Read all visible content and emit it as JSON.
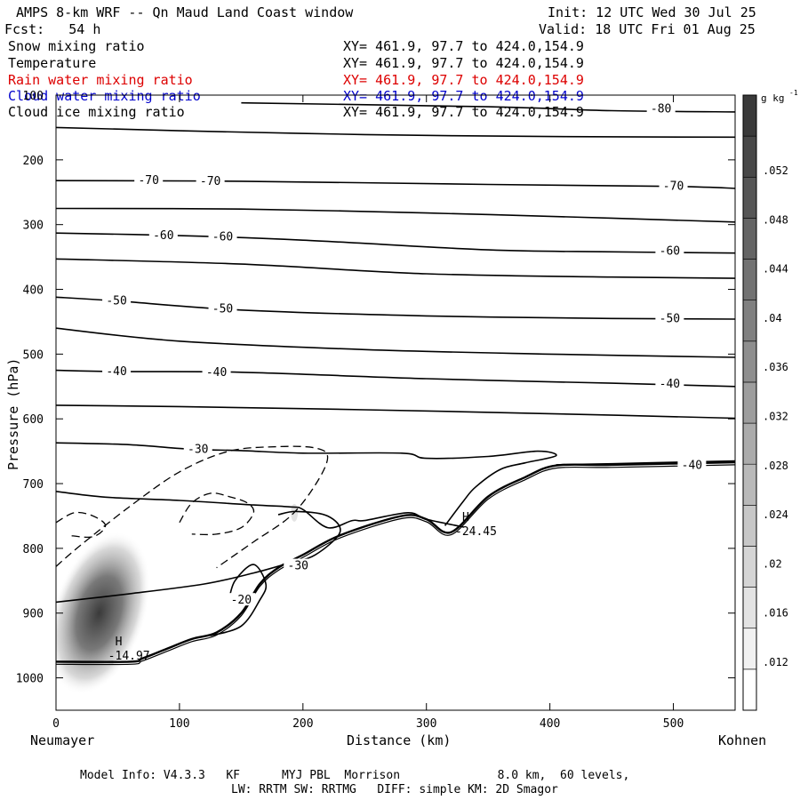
{
  "header": {
    "title": "AMPS 8-km WRF -- Qn Maud Land Coast window",
    "init": "Init: 12 UTC Wed 30 Jul 25",
    "forecast": "Fcst:   54 h",
    "valid": "Valid: 18 UTC Fri 01 Aug 25"
  },
  "fields": [
    {
      "name": "Snow mixing ratio",
      "xy": "XY= 461.9, 97.7 to 424.0,154.9",
      "color": "#000000"
    },
    {
      "name": "Temperature",
      "xy": "XY= 461.9, 97.7 to 424.0,154.9",
      "color": "#000000"
    },
    {
      "name": "Rain water mixing ratio",
      "xy": "XY= 461.9, 97.7 to 424.0,154.9",
      "color": "#dd0000"
    },
    {
      "name": "Cloud water mixing ratio",
      "xy": "XY= 461.9, 97.7 to 424.0,154.9",
      "color": "#0000cc"
    },
    {
      "name": "Cloud ice mixing ratio",
      "xy": "XY= 461.9, 97.7 to 424.0,154.9",
      "color": "#000000"
    }
  ],
  "footer": {
    "model_info": "Model Info: V4.3.3   KF      MYJ PBL  Morrison              8.0 km,  60 levels,",
    "physics": "LW: RRTM SW: RRTMG   DIFF: simple KM: 2D Smagor"
  },
  "chart_data": {
    "type": "contour",
    "xlabel": "Distance (km)",
    "ylabel": "Pressure (hPa)",
    "xlim": [
      0,
      550
    ],
    "ylim": [
      1050,
      100
    ],
    "x_ticks": [
      0,
      100,
      200,
      300,
      400,
      500
    ],
    "y_ticks": [
      100,
      200,
      300,
      400,
      500,
      600,
      700,
      800,
      900,
      1000
    ],
    "x_endpoints": {
      "left": "Neumayer",
      "right": "Kohnen"
    },
    "grid": false,
    "temperature_contours": [
      {
        "level": "-80",
        "points": [
          [
            150,
            112
          ],
          [
            350,
            118
          ],
          [
            450,
            124
          ],
          [
            550,
            126
          ]
        ],
        "labels": [
          [
            490,
            121
          ]
        ]
      },
      {
        "level": "",
        "points": [
          [
            0,
            150
          ],
          [
            100,
            155
          ],
          [
            250,
            161
          ],
          [
            400,
            164
          ],
          [
            550,
            165
          ]
        ],
        "labels": []
      },
      {
        "level": "-70",
        "points": [
          [
            0,
            232
          ],
          [
            150,
            233
          ],
          [
            350,
            238
          ],
          [
            500,
            241
          ],
          [
            550,
            244
          ]
        ],
        "labels": [
          [
            75,
            232
          ],
          [
            125,
            233
          ],
          [
            500,
            241
          ]
        ]
      },
      {
        "level": "",
        "points": [
          [
            0,
            275
          ],
          [
            150,
            276
          ],
          [
            300,
            282
          ],
          [
            450,
            290
          ],
          [
            550,
            296
          ]
        ],
        "labels": []
      },
      {
        "level": "-60",
        "points": [
          [
            0,
            313
          ],
          [
            100,
            317
          ],
          [
            200,
            324
          ],
          [
            350,
            339
          ],
          [
            450,
            342
          ],
          [
            550,
            344
          ]
        ],
        "labels": [
          [
            87,
            317
          ],
          [
            135,
            319
          ],
          [
            497,
            341
          ]
        ]
      },
      {
        "level": "",
        "points": [
          [
            0,
            353
          ],
          [
            150,
            361
          ],
          [
            300,
            376
          ],
          [
            450,
            381
          ],
          [
            550,
            383
          ]
        ],
        "labels": []
      },
      {
        "level": "-50",
        "points": [
          [
            0,
            412
          ],
          [
            50,
            418
          ],
          [
            150,
            432
          ],
          [
            300,
            441
          ],
          [
            450,
            445
          ],
          [
            550,
            446
          ]
        ],
        "labels": [
          [
            49,
            418
          ],
          [
            135,
            430
          ],
          [
            497,
            445
          ]
        ]
      },
      {
        "level": "",
        "points": [
          [
            0,
            460
          ],
          [
            100,
            480
          ],
          [
            250,
            493
          ],
          [
            400,
            500
          ],
          [
            550,
            505
          ]
        ],
        "labels": []
      },
      {
        "level": "-40",
        "points": [
          [
            0,
            525
          ],
          [
            50,
            527
          ],
          [
            150,
            528
          ],
          [
            300,
            538
          ],
          [
            450,
            545
          ],
          [
            550,
            550
          ]
        ],
        "labels": [
          [
            49,
            527
          ],
          [
            130,
            528
          ],
          [
            497,
            546
          ]
        ]
      },
      {
        "level": "",
        "points": [
          [
            0,
            579
          ],
          [
            100,
            581
          ],
          [
            250,
            586
          ],
          [
            400,
            592
          ],
          [
            550,
            599
          ]
        ],
        "labels": []
      },
      {
        "level": "-30",
        "points": [
          [
            0,
            637
          ],
          [
            60,
            640
          ],
          [
            110,
            647
          ],
          [
            150,
            649
          ],
          [
            200,
            653
          ],
          [
            280,
            653
          ],
          [
            300,
            661
          ],
          [
            350,
            658
          ],
          [
            390,
            650
          ],
          [
            405,
            657
          ],
          [
            380,
            668
          ],
          [
            360,
            678
          ],
          [
            340,
            705
          ],
          [
            330,
            727
          ],
          [
            315,
            765
          ]
        ],
        "labels": [
          [
            115,
            647
          ]
        ]
      },
      {
        "level": "",
        "points": [
          [
            0,
            712
          ],
          [
            40,
            721
          ],
          [
            100,
            726
          ],
          [
            160,
            733
          ],
          [
            190,
            736
          ],
          [
            200,
            740
          ],
          [
            220,
            768
          ],
          [
            240,
            757
          ],
          [
            250,
            757
          ],
          [
            285,
            745
          ],
          [
            300,
            755
          ],
          [
            330,
            767
          ]
        ],
        "labels": []
      },
      {
        "level": "-30",
        "points": [
          [
            0,
            883
          ],
          [
            60,
            870
          ],
          [
            120,
            855
          ],
          [
            160,
            838
          ],
          [
            190,
            822
          ],
          [
            210,
            810
          ],
          [
            230,
            775
          ],
          [
            220,
            750
          ],
          [
            195,
            743
          ],
          [
            180,
            748
          ]
        ],
        "labels": [
          [
            196,
            827
          ]
        ]
      },
      {
        "level": "-20",
        "points": [
          [
            125,
            935
          ],
          [
            150,
            920
          ],
          [
            165,
            880
          ],
          [
            170,
            855
          ],
          [
            160,
            825
          ],
          [
            145,
            850
          ],
          [
            140,
            880
          ]
        ],
        "labels": [
          [
            150,
            880
          ]
        ]
      },
      {
        "level": "-40",
        "points": [
          [
            405,
            671
          ],
          [
            480,
            668
          ],
          [
            550,
            665
          ]
        ],
        "labels": [
          [
            515,
            672
          ]
        ]
      }
    ],
    "snow_dashed_contours": [
      {
        "points": [
          [
            0,
            828
          ],
          [
            20,
            795
          ],
          [
            60,
            735
          ],
          [
            100,
            682
          ],
          [
            140,
            650
          ],
          [
            180,
            643
          ],
          [
            210,
            645
          ],
          [
            220,
            660
          ],
          [
            210,
            702
          ],
          [
            190,
            750
          ],
          [
            160,
            790
          ],
          [
            130,
            830
          ]
        ]
      },
      {
        "points": [
          [
            100,
            760
          ],
          [
            110,
            730
          ],
          [
            125,
            715
          ],
          [
            140,
            720
          ],
          [
            155,
            730
          ],
          [
            160,
            745
          ],
          [
            150,
            768
          ],
          [
            130,
            778
          ],
          [
            110,
            778
          ]
        ]
      },
      {
        "points": [
          [
            0,
            760
          ],
          [
            15,
            745
          ],
          [
            30,
            750
          ],
          [
            40,
            765
          ],
          [
            30,
            782
          ],
          [
            10,
            780
          ]
        ]
      }
    ],
    "terrain_outline": [
      [
        0,
        975
      ],
      [
        60,
        975
      ],
      [
        70,
        970
      ],
      [
        90,
        955
      ],
      [
        110,
        940
      ],
      [
        130,
        930
      ],
      [
        150,
        900
      ],
      [
        165,
        855
      ],
      [
        180,
        830
      ],
      [
        200,
        810
      ],
      [
        230,
        780
      ],
      [
        280,
        750
      ],
      [
        300,
        755
      ],
      [
        320,
        775
      ],
      [
        350,
        720
      ],
      [
        380,
        690
      ],
      [
        405,
        672
      ],
      [
        450,
        671
      ],
      [
        550,
        667
      ]
    ],
    "extrema": [
      {
        "marker": "H",
        "value": "-14.97",
        "x": 48,
        "y": 958
      },
      {
        "marker": "H",
        "value": "-24.45",
        "x": 329,
        "y": 766
      }
    ],
    "cloud_ice_shading": {
      "center_x": 35,
      "center_y": 900,
      "max_value": 0.052
    },
    "colorbar": {
      "unit": "g kg",
      "unit_sup": "-1",
      "ticks": [
        ".012",
        ".016",
        ".02",
        ".024",
        ".028",
        ".032",
        ".036",
        ".04",
        ".044",
        ".048",
        ".052"
      ],
      "levels": 15
    }
  }
}
